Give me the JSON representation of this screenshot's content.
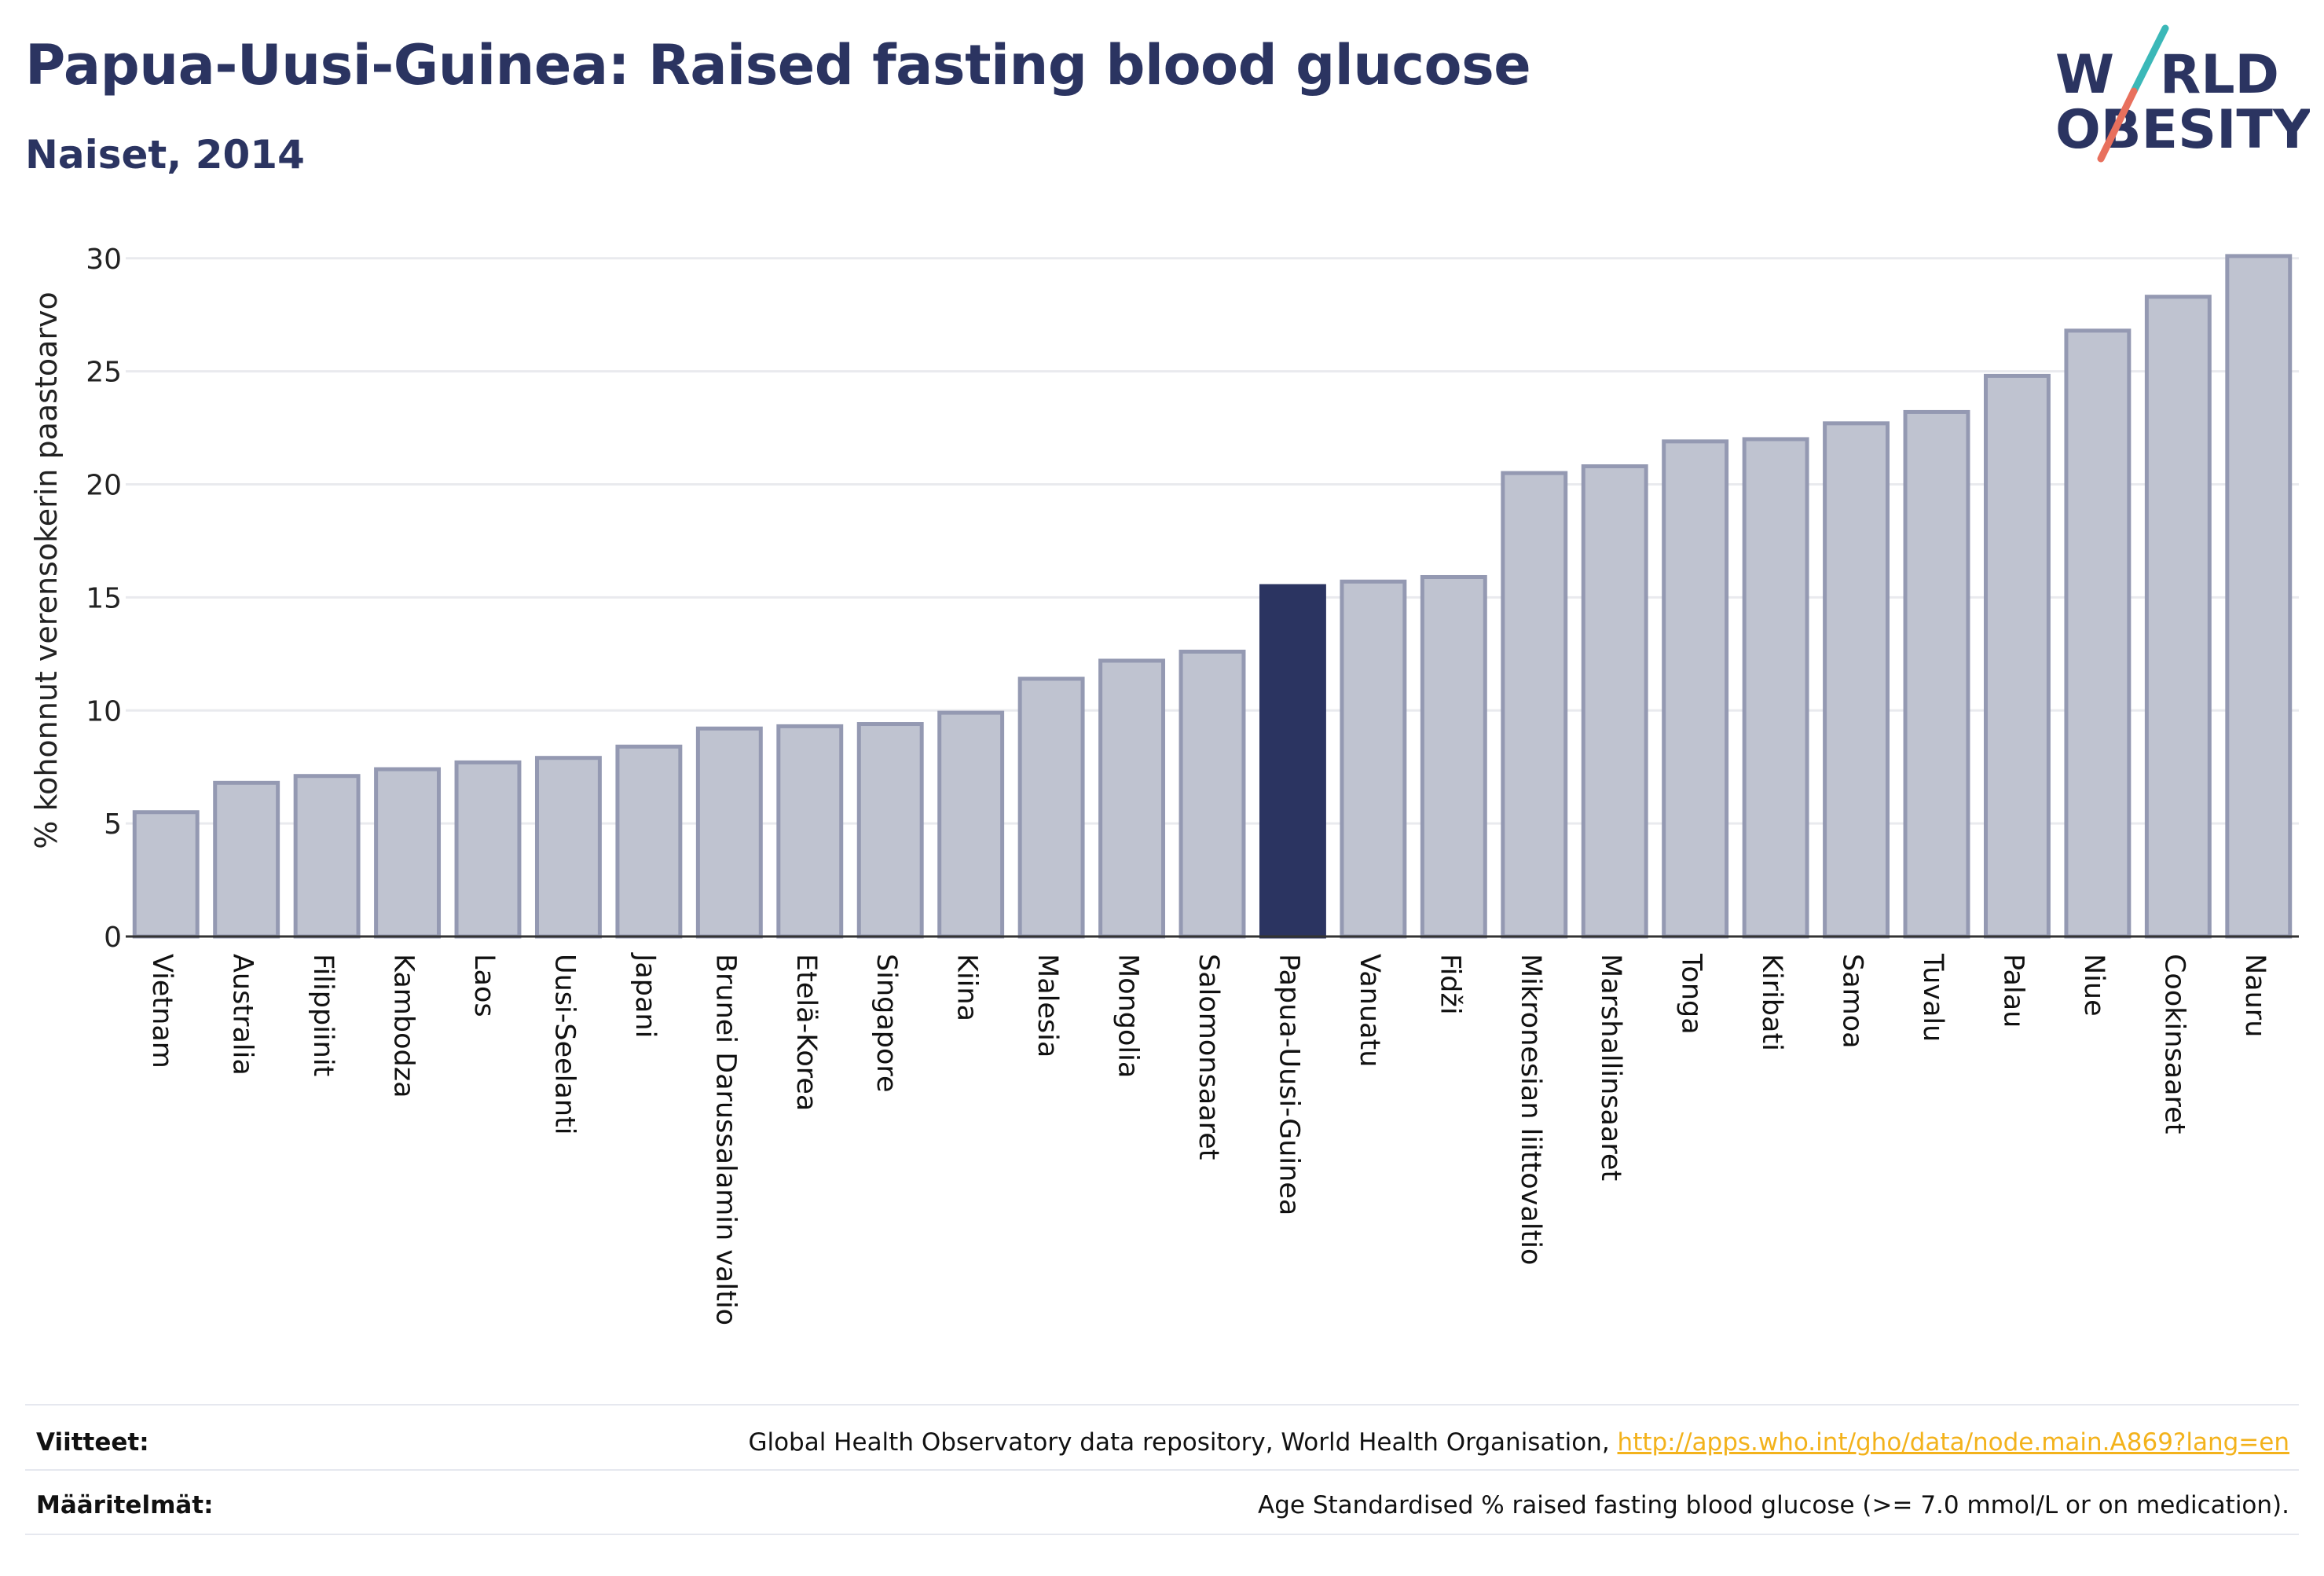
{
  "header": {
    "title": "Papua-Uusi-Guinea: Raised fasting blood glucose",
    "subtitle": "Naiset, 2014"
  },
  "logo": {
    "line1_a": "W",
    "line1_slash": "/",
    "line1_b": "RLD",
    "line2_a": "",
    "line2_b": "OBESITY",
    "colors": {
      "text": "#2b3461",
      "slash_top": "#3bb8b8",
      "slash_bottom": "#e8705d"
    }
  },
  "footer": {
    "references_label": "Viitteet:",
    "references_text": "Global Health Observatory data repository, World Health Organisation, ",
    "references_link": "http://apps.who.int/gho/data/node.main.A869?lang=en",
    "definitions_label": "Määritelmät:",
    "definitions_text": "Age Standardised % raised fasting blood glucose (>= 7.0 mmol/L or on medication)."
  },
  "chart_data": {
    "type": "bar",
    "title": "Papua-Uusi-Guinea: Raised fasting blood glucose",
    "subtitle": "Naiset, 2014",
    "xlabel": "",
    "ylabel": "% kohonnut verensokerin paastoarvo",
    "ylim": [
      0,
      31
    ],
    "yticks": [
      0,
      5,
      10,
      15,
      20,
      25,
      30
    ],
    "grid": true,
    "highlight": "Papua-Uusi-Guinea",
    "colors": {
      "bar": "#bfc3d0",
      "bar_border": "#9499b2",
      "highlight": "#2b3461"
    },
    "categories": [
      "Vietnam",
      "Australia",
      "Filippiinit",
      "Kambodza",
      "Laos",
      "Uusi-Seelanti",
      "Japani",
      "Brunei Darussalamin valtio",
      "Etelä-Korea",
      "Singapore",
      "Kiina",
      "Malesia",
      "Mongolia",
      "Salomonsaaret",
      "Papua-Uusi-Guinea",
      "Vanuatu",
      "Fidži",
      "Mikronesian liittovaltio",
      "Marshallinsaaret",
      "Tonga",
      "Kiribati",
      "Samoa",
      "Tuvalu",
      "Palau",
      "Niue",
      "Cookinsaaret",
      "Nauru"
    ],
    "values": [
      5.5,
      6.8,
      7.1,
      7.4,
      7.7,
      7.9,
      8.4,
      9.2,
      9.3,
      9.4,
      9.9,
      11.4,
      12.2,
      12.6,
      15.5,
      15.7,
      15.9,
      20.5,
      20.8,
      21.9,
      22.0,
      22.7,
      23.2,
      24.8,
      26.8,
      28.3,
      30.1
    ]
  }
}
